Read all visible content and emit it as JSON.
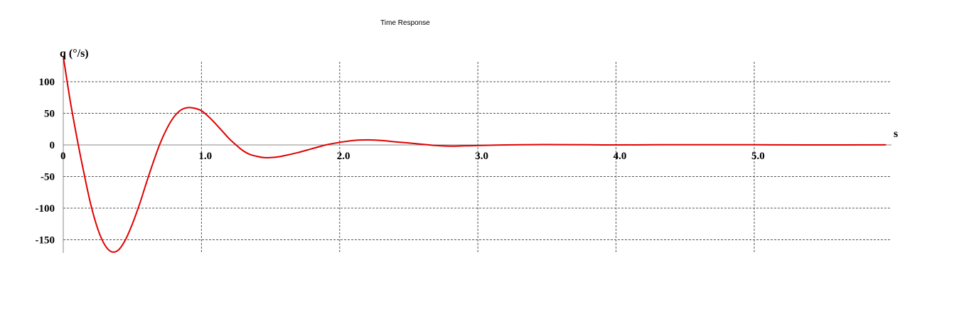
{
  "chart_data": {
    "type": "line",
    "title": "Time Response",
    "ylabel": "q (°/s)",
    "xlabel": "s",
    "xlim": [
      0,
      5.95
    ],
    "ylim": [
      -170,
      130
    ],
    "x_ticks": [
      {
        "value": 0,
        "label": "0"
      },
      {
        "value": 1,
        "label": "1.0"
      },
      {
        "value": 2,
        "label": "2.0"
      },
      {
        "value": 3,
        "label": "3.0"
      },
      {
        "value": 4,
        "label": "4.0"
      },
      {
        "value": 5,
        "label": "5.0"
      }
    ],
    "y_ticks": [
      {
        "value": 100,
        "label": "100"
      },
      {
        "value": 50,
        "label": "50"
      },
      {
        "value": 0,
        "label": "0"
      },
      {
        "value": -50,
        "label": "-50"
      },
      {
        "value": -100,
        "label": "-100"
      },
      {
        "value": -150,
        "label": "-150"
      }
    ],
    "grid": true,
    "series": [
      {
        "color": "#e00000",
        "x": [
          0,
          0.05,
          0.1,
          0.15,
          0.2,
          0.25,
          0.3,
          0.35,
          0.4,
          0.45,
          0.5,
          0.55,
          0.6,
          0.65,
          0.7,
          0.75,
          0.8,
          0.85,
          0.9,
          0.95,
          1.0,
          1.05,
          1.1,
          1.15,
          1.2,
          1.25,
          1.3,
          1.35,
          1.4,
          1.45,
          1.5,
          1.55,
          1.6,
          1.7,
          1.8,
          1.9,
          2.0,
          2.1,
          2.2,
          2.3,
          2.4,
          2.5,
          2.6,
          2.7,
          2.8,
          2.9,
          3.0,
          3.2,
          3.4,
          3.6,
          3.8,
          4.0,
          4.3,
          4.6,
          5.0,
          5.4,
          5.95
        ],
        "y": [
          140,
          70,
          10,
          -45,
          -95,
          -133,
          -158,
          -169,
          -166,
          -150,
          -125,
          -95,
          -61,
          -28,
          2,
          26,
          44,
          55,
          59,
          58,
          54,
          45,
          34,
          22,
          10,
          0,
          -9,
          -15,
          -18,
          -20,
          -20,
          -19,
          -17,
          -12,
          -6,
          0,
          4,
          7,
          8,
          7,
          5,
          3,
          1,
          -1,
          -2,
          -1.5,
          -1,
          0,
          0.5,
          0.5,
          0.3,
          0,
          0.2,
          0.3,
          0.2,
          0,
          0.1
        ]
      }
    ]
  }
}
